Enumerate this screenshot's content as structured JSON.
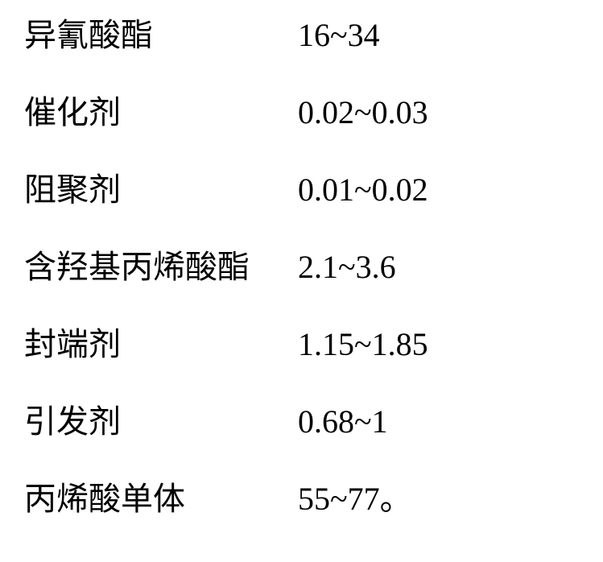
{
  "rows": [
    {
      "label": "异氰酸酯",
      "value": "16~34"
    },
    {
      "label": "催化剂",
      "value": "0.02~0.03"
    },
    {
      "label": "阻聚剂",
      "value": "0.01~0.02"
    },
    {
      "label": "含羟基丙烯酸酯",
      "value": "2.1~3.6"
    },
    {
      "label": "封端剂",
      "value": "1.15~1.85"
    },
    {
      "label": "引发剂",
      "value": "0.68~1"
    },
    {
      "label": "丙烯酸单体",
      "value": "55~77。"
    }
  ],
  "styling": {
    "background_color": "#ffffff",
    "text_color": "#000000",
    "font_family_cjk": "SimSun",
    "font_family_numeric": "Times New Roman",
    "font_size": 40,
    "label_column_width": 340,
    "row_gap": 48,
    "table_type": "table"
  }
}
